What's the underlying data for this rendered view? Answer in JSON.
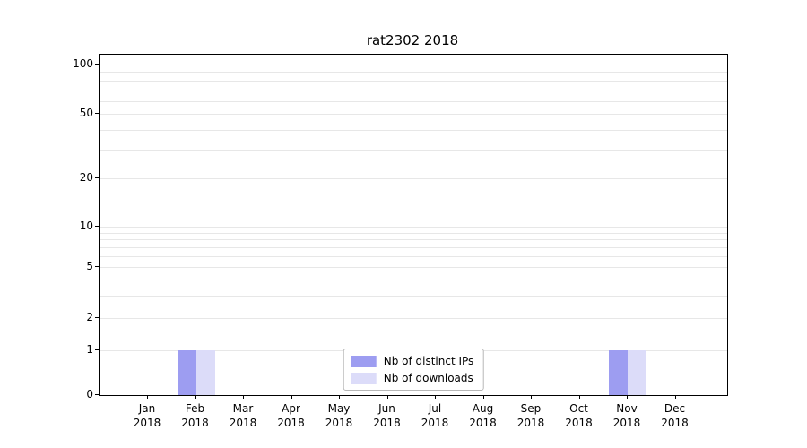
{
  "chart_data": {
    "type": "bar",
    "title": "rat2302 2018",
    "categories": [
      "Jan 2018",
      "Feb 2018",
      "Mar 2018",
      "Apr 2018",
      "May 2018",
      "Jun 2018",
      "Jul 2018",
      "Aug 2018",
      "Sep 2018",
      "Oct 2018",
      "Nov 2018",
      "Dec 2018"
    ],
    "series": [
      {
        "name": "Nb of distinct IPs",
        "color": "#9d9df1",
        "values": [
          0,
          1,
          0,
          0,
          0,
          0,
          0,
          0,
          0,
          0,
          1,
          0
        ]
      },
      {
        "name": "Nb of downloads",
        "color": "#dcdcf9",
        "values": [
          0,
          1,
          0,
          0,
          0,
          0,
          0,
          0,
          0,
          0,
          1,
          0
        ]
      }
    ],
    "yscale": "symlog",
    "ylim": [
      0,
      120
    ],
    "yticks": [
      0,
      1,
      2,
      5,
      10,
      20,
      50,
      100
    ],
    "minor_gridlines": [
      3,
      4,
      6,
      7,
      8,
      9,
      30,
      40,
      60,
      70,
      80,
      90
    ],
    "grid": true,
    "grid_color": "#e7e7e7",
    "legend_position": "lower center"
  }
}
